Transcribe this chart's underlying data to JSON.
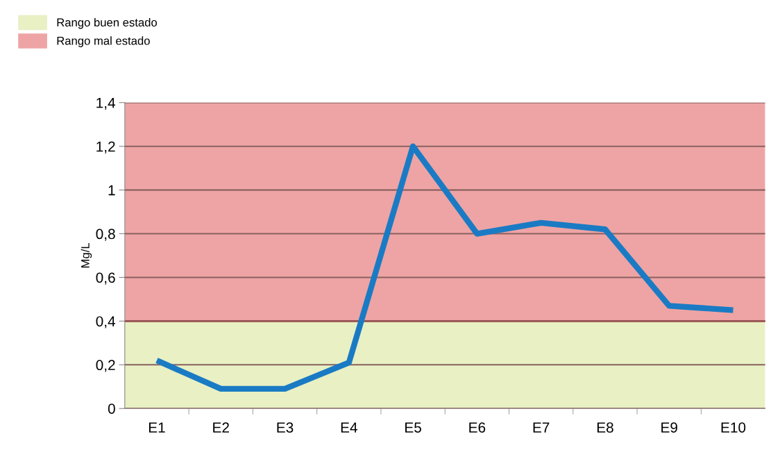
{
  "chart_data": {
    "type": "line",
    "ylabel": "Mg/L",
    "categories": [
      "E1",
      "E2",
      "E3",
      "E4",
      "E5",
      "E6",
      "E7",
      "E8",
      "E9",
      "E10"
    ],
    "series": [
      {
        "color": "#1a7bc4",
        "values": [
          0.22,
          0.09,
          0.09,
          0.21,
          1.2,
          0.8,
          0.85,
          0.82,
          0.47,
          0.45
        ]
      }
    ],
    "ylim": [
      0,
      1.4
    ],
    "yticks": [
      0,
      {
        "value": 0.2,
        "label": "0,2"
      },
      {
        "value": 0.4,
        "label": "0,4"
      },
      {
        "value": 0.6,
        "label": "0,6"
      },
      {
        "value": 0.8,
        "label": "0,8"
      },
      1,
      {
        "value": 1.2,
        "label": "1,2"
      },
      {
        "value": 1.4,
        "label": "1,4"
      }
    ],
    "bands": [
      {
        "axis": "y",
        "from": 0,
        "to": 0.4,
        "label": "Rango buen estado",
        "color": "#e8f0c4"
      },
      {
        "axis": "y",
        "from": 0.4,
        "to": 1.4,
        "label": "Rango mal estado",
        "color": "#eea4a4"
      }
    ],
    "ref_lines": [
      {
        "axis": "y",
        "value": 0.4,
        "color": "#d42020",
        "line_style": "solid"
      }
    ],
    "grid": "y",
    "legend": "top left",
    "marker": "none",
    "line_style": "solid"
  }
}
